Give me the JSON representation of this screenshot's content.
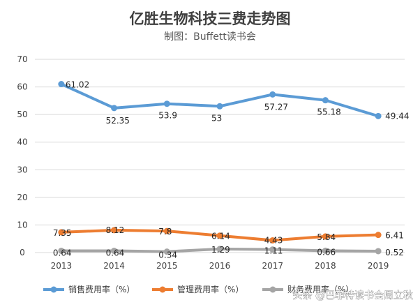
{
  "chart_data": {
    "type": "line",
    "title": "亿胜生物科技三费走势图",
    "subtitle": "制图：Buffett读书会",
    "categories": [
      "2013",
      "2014",
      "2015",
      "2016",
      "2017",
      "2018",
      "2019"
    ],
    "ylim": [
      0,
      70
    ],
    "yticks": [
      0,
      10,
      20,
      30,
      40,
      50,
      60,
      70
    ],
    "ytick_labels": [
      "0",
      "10",
      "20",
      "30",
      "40",
      "50",
      "60",
      "70"
    ],
    "grid": true,
    "legend_position": "bottom",
    "series": [
      {
        "name": "销售费用率（%）",
        "color": "#5b9bd5",
        "values": [
          61.02,
          52.35,
          53.9,
          53,
          57.27,
          55.18,
          49.44
        ],
        "labels": [
          "61.02",
          "52.35",
          "53.9",
          "53",
          "57.27",
          "55.18",
          "49.44"
        ]
      },
      {
        "name": "管理费用率（%）",
        "color": "#ed7d31",
        "values": [
          7.35,
          8.12,
          7.8,
          6.14,
          4.43,
          5.84,
          6.41
        ],
        "labels": [
          "7.35",
          "8.12",
          "7.8",
          "6.14",
          "4.43",
          "5.84",
          "6.41"
        ]
      },
      {
        "name": "财务费用率（%）",
        "color": "#a5a5a5",
        "values": [
          0.64,
          0.64,
          0.34,
          1.29,
          1.11,
          0.66,
          0.52
        ],
        "labels": [
          "0.64",
          "0.64",
          "0.34",
          "1.29",
          "1.11",
          "0.66",
          "0.52"
        ]
      }
    ]
  },
  "watermark": "头条 @巴菲特读书会周立秋"
}
